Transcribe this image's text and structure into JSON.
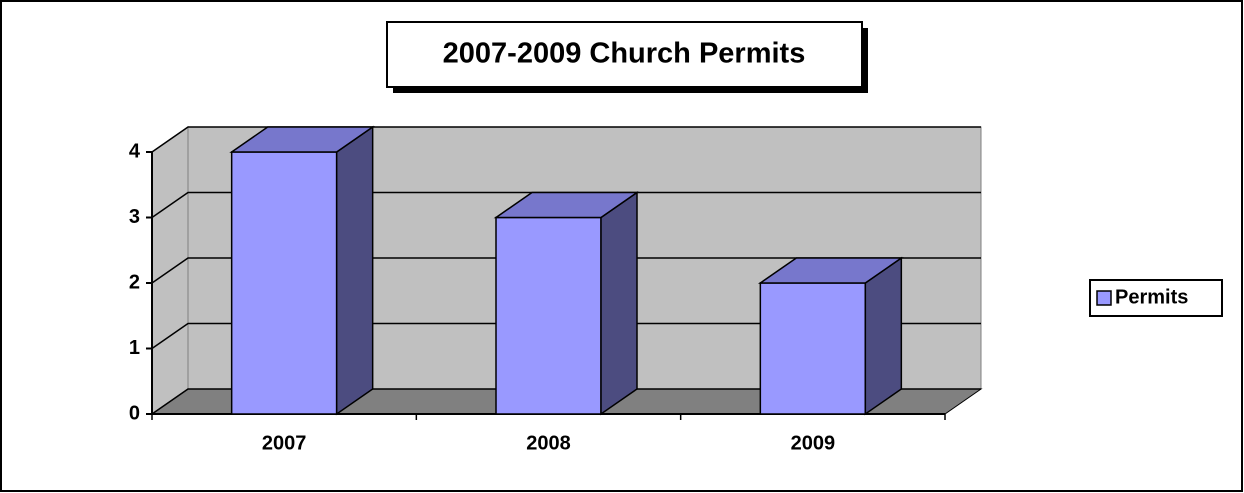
{
  "chart_data": {
    "type": "bar3d",
    "title": "2007-2009 Church Permits",
    "categories": [
      "2007",
      "2008",
      "2009"
    ],
    "series": [
      {
        "name": "Permits",
        "color": "#9999ff",
        "values": [
          4,
          3,
          2
        ]
      }
    ],
    "ylim": [
      0,
      4
    ],
    "yticks": [
      0,
      1,
      2,
      3,
      4
    ],
    "grid": true,
    "legend": "right"
  }
}
